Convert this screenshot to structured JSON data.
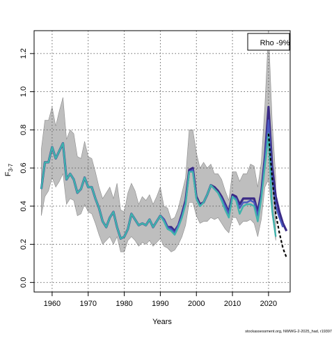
{
  "chart_data": {
    "type": "line",
    "xlabel": "Years",
    "ylabel_main": "F",
    "ylabel_sub": "3-7",
    "xlim": [
      1955,
      2026
    ],
    "ylim": [
      -0.05,
      1.32
    ],
    "xticks": [
      1960,
      1970,
      1980,
      1990,
      2000,
      2010,
      2020
    ],
    "yticks": [
      0.0,
      0.2,
      0.4,
      0.6,
      0.8,
      1.0,
      1.2
    ],
    "ytick_labels": [
      "0.0",
      "0.2",
      "0.4",
      "0.6",
      "0.8",
      "1.0",
      "1.2"
    ],
    "grid": true,
    "legend_label": "Rho -9%",
    "legend_position": "top-right",
    "source_note": "stockassessment.org, NWWG-2-2025_had, r19397",
    "colors": {
      "band": "#bebebe",
      "retro_dark": "#3a2a86",
      "retro_mid": "#4a58c0",
      "main": "#3fb3ac",
      "forecast": "#000000"
    },
    "confidence_band": {
      "x": [
        1957,
        1958,
        1959,
        1960,
        1961,
        1962,
        1963,
        1964,
        1965,
        1966,
        1967,
        1968,
        1969,
        1970,
        1971,
        1972,
        1973,
        1974,
        1975,
        1976,
        1977,
        1978,
        1979,
        1980,
        1981,
        1982,
        1983,
        1984,
        1985,
        1986,
        1987,
        1988,
        1989,
        1990,
        1991,
        1992,
        1993,
        1994,
        1995,
        1996,
        1997,
        1998,
        1999,
        2000,
        2001,
        2002,
        2003,
        2004,
        2005,
        2006,
        2007,
        2008,
        2009,
        2010,
        2011,
        2012,
        2013,
        2014,
        2015,
        2016,
        2017,
        2018,
        2019,
        2020,
        2021,
        2022
      ],
      "upper": [
        0.7,
        0.85,
        0.85,
        0.92,
        0.82,
        0.9,
        0.97,
        0.75,
        0.8,
        0.78,
        0.66,
        0.65,
        0.74,
        0.66,
        0.65,
        0.58,
        0.5,
        0.44,
        0.47,
        0.5,
        0.44,
        0.52,
        0.38,
        0.37,
        0.47,
        0.52,
        0.48,
        0.41,
        0.45,
        0.43,
        0.46,
        0.41,
        0.45,
        0.5,
        0.4,
        0.39,
        0.33,
        0.34,
        0.39,
        0.47,
        0.55,
        0.8,
        0.8,
        0.68,
        0.6,
        0.63,
        0.6,
        0.62,
        0.57,
        0.57,
        0.54,
        0.48,
        0.43,
        0.58,
        0.58,
        0.53,
        0.57,
        0.57,
        0.62,
        0.61,
        0.5,
        0.63,
        0.93,
        1.32,
        0.85,
        0.55
      ],
      "lower": [
        0.35,
        0.45,
        0.48,
        0.55,
        0.5,
        0.53,
        0.57,
        0.41,
        0.44,
        0.43,
        0.35,
        0.36,
        0.41,
        0.37,
        0.36,
        0.31,
        0.25,
        0.2,
        0.22,
        0.24,
        0.2,
        0.24,
        0.16,
        0.16,
        0.22,
        0.24,
        0.22,
        0.19,
        0.21,
        0.2,
        0.22,
        0.19,
        0.21,
        0.23,
        0.19,
        0.18,
        0.16,
        0.17,
        0.2,
        0.24,
        0.3,
        0.42,
        0.42,
        0.35,
        0.31,
        0.32,
        0.32,
        0.34,
        0.33,
        0.34,
        0.31,
        0.28,
        0.26,
        0.34,
        0.34,
        0.3,
        0.32,
        0.32,
        0.33,
        0.31,
        0.24,
        0.33,
        0.5,
        0.54,
        0.35,
        0.22
      ]
    },
    "series": [
      {
        "id": "retro_dark",
        "x": [
          1957,
          1958,
          1959,
          1960,
          1961,
          1962,
          1963,
          1964,
          1965,
          1966,
          1967,
          1968,
          1969,
          1970,
          1971,
          1972,
          1973,
          1974,
          1975,
          1976,
          1977,
          1978,
          1979,
          1980,
          1981,
          1982,
          1983,
          1984,
          1985,
          1986,
          1987,
          1988,
          1989,
          1990,
          1991,
          1992,
          1993,
          1994,
          1995,
          1996,
          1997,
          1998,
          1999,
          2000,
          2001,
          2002,
          2003,
          2004,
          2005,
          2006,
          2007,
          2008,
          2009,
          2010,
          2011,
          2012,
          2013,
          2014,
          2015,
          2016,
          2017,
          2018,
          2019,
          2020,
          2021,
          2022,
          2023,
          2024,
          2025
        ],
        "y": [
          0.49,
          0.63,
          0.63,
          0.71,
          0.65,
          0.69,
          0.73,
          0.54,
          0.57,
          0.54,
          0.47,
          0.49,
          0.55,
          0.5,
          0.5,
          0.44,
          0.39,
          0.32,
          0.29,
          0.34,
          0.37,
          0.29,
          0.23,
          0.24,
          0.28,
          0.36,
          0.33,
          0.3,
          0.31,
          0.3,
          0.33,
          0.29,
          0.32,
          0.35,
          0.33,
          0.29,
          0.29,
          0.27,
          0.3,
          0.36,
          0.43,
          0.59,
          0.6,
          0.45,
          0.41,
          0.42,
          0.46,
          0.51,
          0.5,
          0.48,
          0.45,
          0.41,
          0.37,
          0.46,
          0.45,
          0.41,
          0.44,
          0.44,
          0.44,
          0.44,
          0.37,
          0.47,
          0.66,
          0.92,
          0.61,
          0.45,
          0.37,
          0.31,
          0.27
        ]
      },
      {
        "id": "retro_mid",
        "x": [
          1957,
          1958,
          1959,
          1960,
          1961,
          1962,
          1963,
          1964,
          1965,
          1966,
          1967,
          1968,
          1969,
          1970,
          1971,
          1972,
          1973,
          1974,
          1975,
          1976,
          1977,
          1978,
          1979,
          1980,
          1981,
          1982,
          1983,
          1984,
          1985,
          1986,
          1987,
          1988,
          1989,
          1990,
          1991,
          1992,
          1993,
          1994,
          1995,
          1996,
          1997,
          1998,
          1999,
          2000,
          2001,
          2002,
          2003,
          2004,
          2005,
          2006,
          2007,
          2008,
          2009,
          2010,
          2011,
          2012,
          2013,
          2014,
          2015,
          2016,
          2017,
          2018,
          2019,
          2020,
          2021,
          2022,
          2023,
          2024
        ],
        "y": [
          0.49,
          0.63,
          0.63,
          0.71,
          0.65,
          0.69,
          0.73,
          0.54,
          0.57,
          0.54,
          0.47,
          0.49,
          0.55,
          0.5,
          0.5,
          0.44,
          0.39,
          0.32,
          0.29,
          0.34,
          0.37,
          0.29,
          0.23,
          0.24,
          0.28,
          0.36,
          0.33,
          0.3,
          0.31,
          0.3,
          0.33,
          0.29,
          0.32,
          0.35,
          0.33,
          0.29,
          0.28,
          0.26,
          0.3,
          0.35,
          0.42,
          0.58,
          0.59,
          0.44,
          0.4,
          0.42,
          0.46,
          0.51,
          0.49,
          0.47,
          0.44,
          0.4,
          0.36,
          0.45,
          0.44,
          0.39,
          0.42,
          0.42,
          0.43,
          0.42,
          0.35,
          0.45,
          0.64,
          0.85,
          0.55,
          0.4,
          0.34,
          0.29
        ]
      },
      {
        "id": "main",
        "x": [
          1957,
          1958,
          1959,
          1960,
          1961,
          1962,
          1963,
          1964,
          1965,
          1966,
          1967,
          1968,
          1969,
          1970,
          1971,
          1972,
          1973,
          1974,
          1975,
          1976,
          1977,
          1978,
          1979,
          1980,
          1981,
          1982,
          1983,
          1984,
          1985,
          1986,
          1987,
          1988,
          1989,
          1990,
          1991,
          1992,
          1993,
          1994,
          1995,
          1996,
          1997,
          1998,
          1999,
          2000,
          2001,
          2002,
          2003,
          2004,
          2005,
          2006,
          2007,
          2008,
          2009,
          2010,
          2011,
          2012,
          2013,
          2014,
          2015,
          2016,
          2017,
          2018,
          2019,
          2020,
          2021,
          2022
        ],
        "y": [
          0.49,
          0.63,
          0.63,
          0.71,
          0.65,
          0.69,
          0.73,
          0.54,
          0.57,
          0.54,
          0.47,
          0.49,
          0.55,
          0.5,
          0.5,
          0.44,
          0.39,
          0.32,
          0.29,
          0.34,
          0.37,
          0.29,
          0.23,
          0.24,
          0.28,
          0.36,
          0.33,
          0.3,
          0.31,
          0.3,
          0.33,
          0.29,
          0.32,
          0.35,
          0.32,
          0.28,
          0.27,
          0.25,
          0.29,
          0.34,
          0.41,
          0.58,
          0.58,
          0.44,
          0.4,
          0.42,
          0.46,
          0.51,
          0.49,
          0.47,
          0.43,
          0.38,
          0.34,
          0.45,
          0.43,
          0.36,
          0.4,
          0.41,
          0.41,
          0.4,
          0.32,
          0.44,
          0.61,
          0.78,
          0.38,
          0.24
        ]
      }
    ],
    "forecast": {
      "x": [
        2020,
        2021,
        2022,
        2023,
        2024,
        2025
      ],
      "y": [
        0.78,
        0.55,
        0.36,
        0.26,
        0.18,
        0.13
      ]
    }
  }
}
